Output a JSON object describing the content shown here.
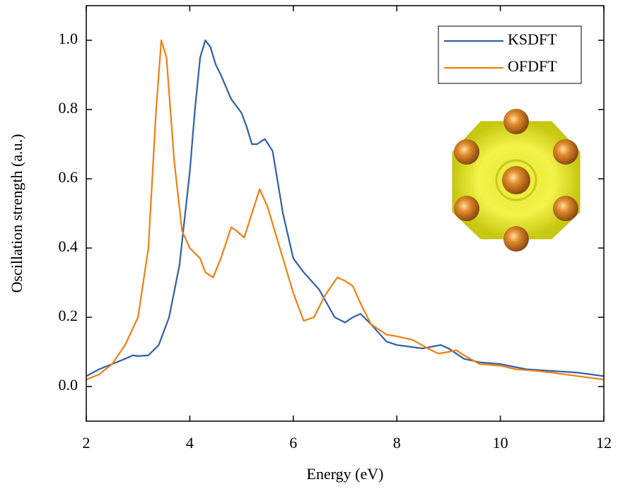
{
  "chart_data": {
    "type": "line",
    "xlabel": "Energy (eV)",
    "ylabel": "Oscillation strength (a.u.)",
    "xlim": [
      2,
      12
    ],
    "ylim": [
      -0.1,
      1.1
    ],
    "xticks": [
      2,
      4,
      6,
      8,
      10,
      12
    ],
    "yticks": [
      {
        "value": 0,
        "label": "0.0"
      },
      0.2,
      0.4,
      0.6,
      0.8,
      {
        "value": 1,
        "label": "1.0"
      }
    ],
    "legend": "upper right",
    "series": [
      {
        "name": "KSDFT",
        "color": "#2f5fa8",
        "x": [
          2.0,
          2.25,
          2.5,
          2.75,
          2.9,
          3.0,
          3.2,
          3.4,
          3.6,
          3.8,
          4.0,
          4.1,
          4.2,
          4.3,
          4.4,
          4.5,
          4.6,
          4.8,
          5.0,
          5.1,
          5.2,
          5.3,
          5.45,
          5.6,
          5.8,
          6.0,
          6.2,
          6.5,
          6.8,
          7.0,
          7.15,
          7.3,
          7.5,
          7.8,
          8.0,
          8.5,
          8.85,
          9.0,
          9.3,
          9.6,
          10.0,
          10.5,
          11.0,
          11.5,
          12.0
        ],
        "values": [
          0.03,
          0.05,
          0.065,
          0.08,
          0.09,
          0.088,
          0.09,
          0.12,
          0.2,
          0.35,
          0.62,
          0.8,
          0.95,
          1.0,
          0.98,
          0.93,
          0.9,
          0.83,
          0.79,
          0.75,
          0.7,
          0.7,
          0.715,
          0.68,
          0.5,
          0.37,
          0.33,
          0.28,
          0.2,
          0.185,
          0.2,
          0.21,
          0.18,
          0.13,
          0.12,
          0.11,
          0.12,
          0.11,
          0.08,
          0.07,
          0.065,
          0.05,
          0.045,
          0.04,
          0.03
        ]
      },
      {
        "name": "OFDFT",
        "color": "#f07f12",
        "x": [
          2.0,
          2.25,
          2.5,
          2.75,
          3.0,
          3.2,
          3.35,
          3.45,
          3.55,
          3.7,
          3.85,
          4.0,
          4.2,
          4.3,
          4.45,
          4.6,
          4.8,
          4.9,
          5.05,
          5.2,
          5.35,
          5.5,
          5.7,
          6.0,
          6.2,
          6.4,
          6.6,
          6.85,
          7.0,
          7.15,
          7.3,
          7.5,
          7.8,
          8.0,
          8.3,
          8.6,
          8.8,
          9.0,
          9.15,
          9.3,
          9.6,
          10.0,
          10.3,
          10.7,
          11.0,
          11.5,
          12.0
        ],
        "values": [
          0.02,
          0.035,
          0.065,
          0.12,
          0.2,
          0.4,
          0.8,
          1.0,
          0.95,
          0.65,
          0.45,
          0.4,
          0.37,
          0.33,
          0.315,
          0.37,
          0.46,
          0.45,
          0.43,
          0.5,
          0.57,
          0.52,
          0.42,
          0.27,
          0.19,
          0.2,
          0.26,
          0.315,
          0.305,
          0.29,
          0.24,
          0.18,
          0.15,
          0.145,
          0.135,
          0.11,
          0.095,
          0.1,
          0.105,
          0.09,
          0.065,
          0.06,
          0.05,
          0.045,
          0.04,
          0.03,
          0.02
        ]
      }
    ]
  }
}
